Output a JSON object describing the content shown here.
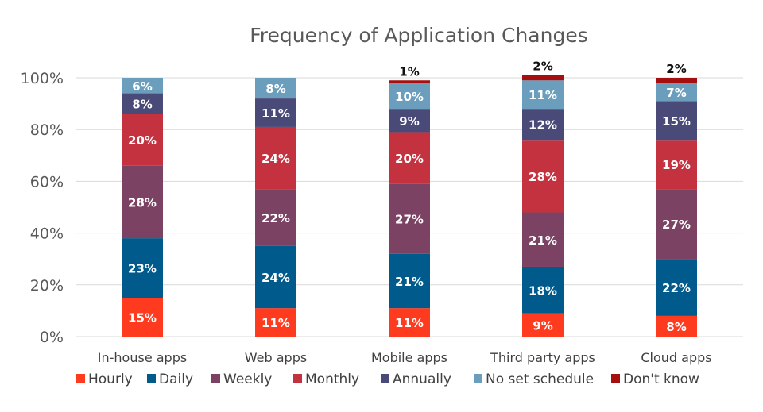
{
  "chart_data": {
    "type": "bar",
    "stacked": true,
    "title": "Frequency of Application Changes",
    "xlabel": "",
    "ylabel": "",
    "ylim": [
      0,
      100
    ],
    "yticks": [
      "0%",
      "20%",
      "40%",
      "60%",
      "80%",
      "100%"
    ],
    "ytick_values": [
      0,
      20,
      40,
      60,
      80,
      100
    ],
    "grid": true,
    "legend_position": "bottom",
    "categories": [
      "In-house apps",
      "Web apps",
      "Mobile apps",
      "Third party apps",
      "Cloud apps"
    ],
    "series": [
      {
        "name": "Hourly",
        "color": "#ff3b1f",
        "values": [
          15,
          11,
          11,
          9,
          8
        ]
      },
      {
        "name": "Daily",
        "color": "#005b8c",
        "values": [
          23,
          24,
          21,
          18,
          22
        ]
      },
      {
        "name": "Weekly",
        "color": "#7b4263",
        "values": [
          28,
          22,
          27,
          21,
          27
        ]
      },
      {
        "name": "Monthly",
        "color": "#c4323f",
        "values": [
          20,
          24,
          20,
          28,
          19
        ]
      },
      {
        "name": "Annually",
        "color": "#4a4a78",
        "values": [
          8,
          11,
          9,
          12,
          15
        ]
      },
      {
        "name": "No set schedule",
        "color": "#6b9ebd",
        "values": [
          6,
          8,
          10,
          11,
          7
        ]
      },
      {
        "name": "Don't know",
        "color": "#a50f0f",
        "values": [
          0,
          0,
          1,
          2,
          2
        ]
      }
    ],
    "data_labels": [
      [
        "15%",
        "11%",
        "11%",
        "9%",
        "8%"
      ],
      [
        "23%",
        "24%",
        "21%",
        "18%",
        "22%"
      ],
      [
        "28%",
        "22%",
        "27%",
        "21%",
        "27%"
      ],
      [
        "20%",
        "24%",
        "20%",
        "28%",
        "19%"
      ],
      [
        "8%",
        "11%",
        "9%",
        "12%",
        "15%"
      ],
      [
        "6%",
        "8%",
        "10%",
        "11%",
        "7%"
      ],
      [
        "",
        "",
        "1%",
        "2%",
        "2%"
      ]
    ]
  }
}
